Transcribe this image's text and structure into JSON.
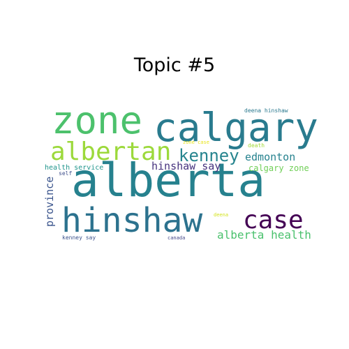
{
  "title": "Topic #5",
  "words": [
    {
      "text": "alberta",
      "color": "#26818e"
    },
    {
      "text": "calgary",
      "color": "#297b8e"
    },
    {
      "text": "zone",
      "color": "#4cc16c"
    },
    {
      "text": "hinshaw",
      "color": "#2c728e"
    },
    {
      "text": "albertan",
      "color": "#9cd93b"
    },
    {
      "text": "case",
      "color": "#440154"
    },
    {
      "text": "kenney",
      "color": "#26848e"
    },
    {
      "text": "alberta health",
      "color": "#4ac16d"
    },
    {
      "text": "edmonton",
      "color": "#26828e"
    },
    {
      "text": "hinshaw say",
      "color": "#46327e"
    },
    {
      "text": "calgary zone",
      "color": "#70cf57"
    },
    {
      "text": "province",
      "color": "#3a548c"
    },
    {
      "text": "health service",
      "color": "#1f958b"
    },
    {
      "text": "deena hinshaw",
      "color": "#2a788e"
    },
    {
      "text": "death",
      "color": "#a2da37"
    },
    {
      "text": "zone case",
      "color": "#e8e419"
    },
    {
      "text": "self",
      "color": "#3d4d8a"
    },
    {
      "text": "kenney say",
      "color": "#3b518b"
    },
    {
      "text": "canada",
      "color": "#414487"
    },
    {
      "text": "deena",
      "color": "#d2e21b"
    }
  ]
}
